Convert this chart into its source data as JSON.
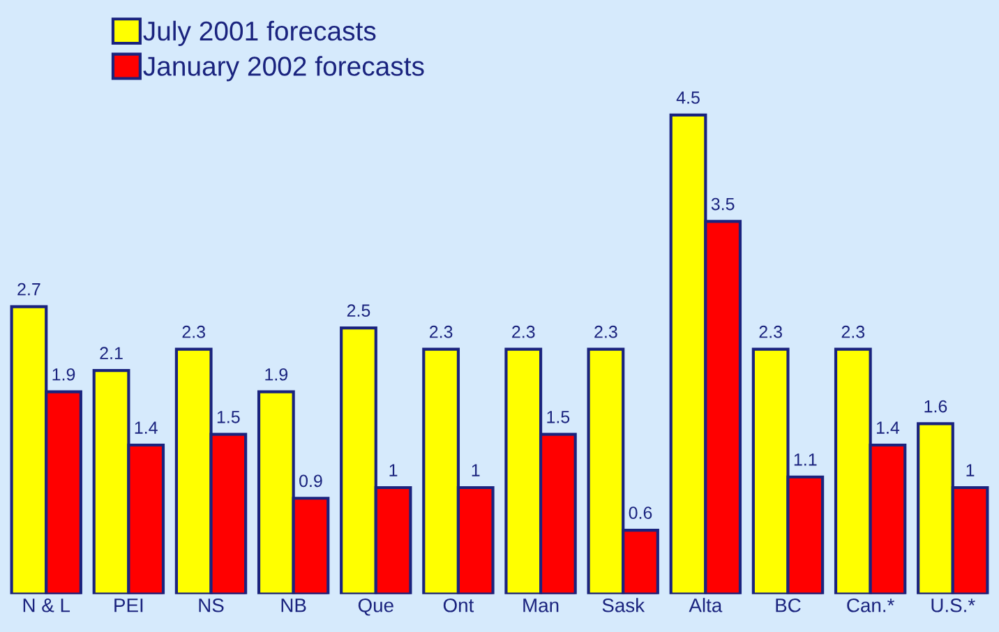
{
  "chart_data": {
    "type": "bar",
    "categories": [
      "N & L",
      "PEI",
      "NS",
      "NB",
      "Que",
      "Ont",
      "Man",
      "Sask",
      "Alta",
      "BC",
      "Can.*",
      "U.S.*"
    ],
    "series": [
      {
        "name": "July 2001 forecasts",
        "color": "#ffff00",
        "values": [
          2.7,
          2.1,
          2.3,
          1.9,
          2.5,
          2.3,
          2.3,
          2.3,
          4.5,
          2.3,
          2.3,
          1.6
        ]
      },
      {
        "name": "January 2002 forecasts",
        "color": "#ff0000",
        "values": [
          1.9,
          1.4,
          1.5,
          0.9,
          1,
          1,
          1.5,
          0.6,
          3.5,
          1.1,
          1.4,
          1
        ]
      }
    ],
    "data_labels": true,
    "legend": "top left",
    "grid": false
  }
}
